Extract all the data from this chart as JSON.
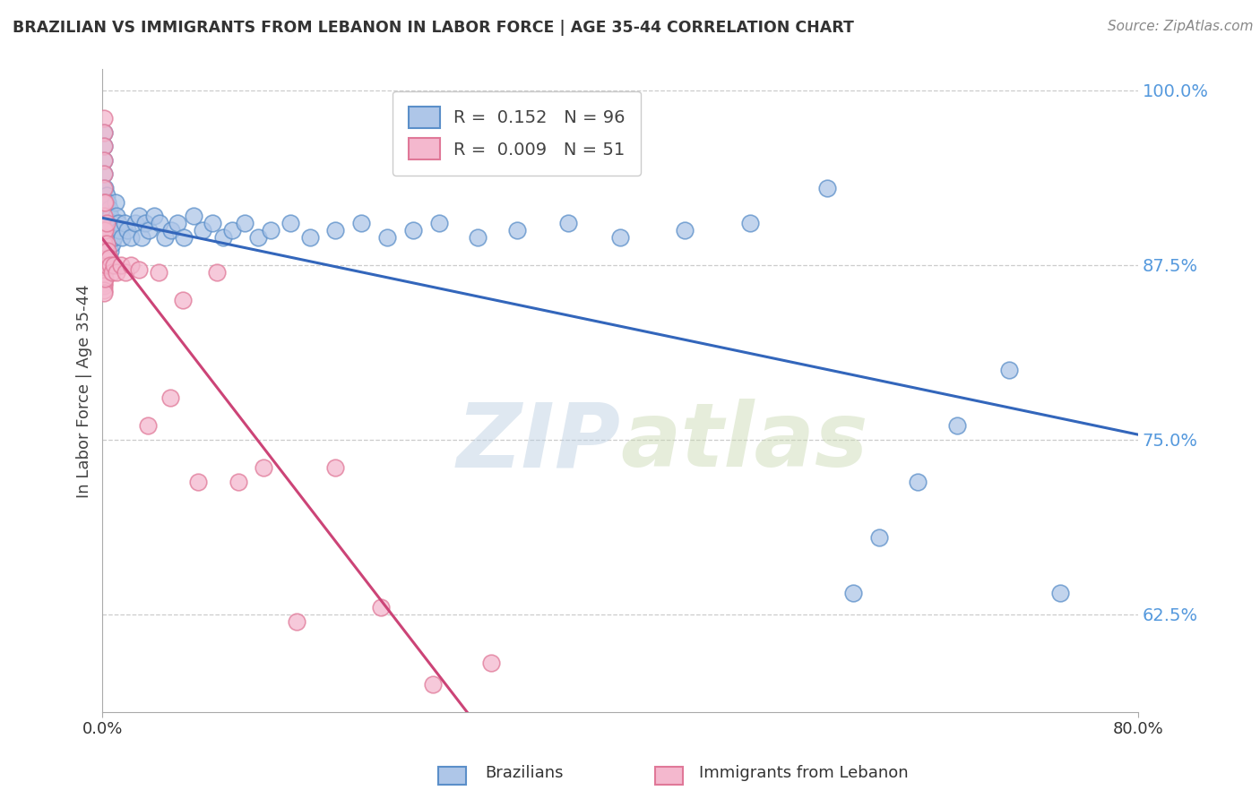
{
  "title": "BRAZILIAN VS IMMIGRANTS FROM LEBANON IN LABOR FORCE | AGE 35-44 CORRELATION CHART",
  "source": "Source: ZipAtlas.com",
  "ylabel": "In Labor Force | Age 35-44",
  "watermark_zip": "ZIP",
  "watermark_atlas": "atlas",
  "legend_blue_R": "0.152",
  "legend_blue_N": "96",
  "legend_pink_R": "0.009",
  "legend_pink_N": "51",
  "legend_label_blue": "Brazilians",
  "legend_label_pink": "Immigrants from Lebanon",
  "xlim": [
    0.0,
    0.8
  ],
  "ylim": [
    0.555,
    1.015
  ],
  "yticks": [
    0.625,
    0.75,
    0.875,
    1.0
  ],
  "ytick_labels": [
    "62.5%",
    "75.0%",
    "87.5%",
    "100.0%"
  ],
  "blue_scatter_color": "#aec6e8",
  "blue_edge_color": "#5b8fc9",
  "pink_scatter_color": "#f4b8ce",
  "pink_edge_color": "#e07898",
  "blue_line_color": "#3366bb",
  "pink_line_color": "#cc4477",
  "background_color": "#ffffff",
  "grid_color": "#cccccc",
  "title_color": "#333333",
  "axis_tick_color": "#5599dd",
  "blue_x": [
    0.001,
    0.001,
    0.001,
    0.001,
    0.001,
    0.001,
    0.001,
    0.001,
    0.001,
    0.001,
    0.001,
    0.001,
    0.001,
    0.001,
    0.001,
    0.001,
    0.001,
    0.001,
    0.001,
    0.001,
    0.002,
    0.002,
    0.002,
    0.002,
    0.002,
    0.002,
    0.002,
    0.002,
    0.003,
    0.003,
    0.003,
    0.003,
    0.003,
    0.003,
    0.004,
    0.004,
    0.004,
    0.004,
    0.005,
    0.005,
    0.005,
    0.005,
    0.006,
    0.006,
    0.006,
    0.007,
    0.007,
    0.008,
    0.009,
    0.01,
    0.011,
    0.012,
    0.013,
    0.015,
    0.017,
    0.019,
    0.022,
    0.025,
    0.028,
    0.03,
    0.033,
    0.036,
    0.04,
    0.044,
    0.048,
    0.053,
    0.058,
    0.063,
    0.07,
    0.077,
    0.085,
    0.093,
    0.1,
    0.11,
    0.12,
    0.13,
    0.145,
    0.16,
    0.18,
    0.2,
    0.22,
    0.24,
    0.26,
    0.29,
    0.32,
    0.36,
    0.4,
    0.45,
    0.5,
    0.56,
    0.58,
    0.6,
    0.63,
    0.66,
    0.7,
    0.74
  ],
  "blue_y": [
    0.97,
    0.96,
    0.95,
    0.94,
    0.93,
    0.92,
    0.91,
    0.9,
    0.895,
    0.89,
    0.887,
    0.885,
    0.882,
    0.88,
    0.878,
    0.876,
    0.873,
    0.87,
    0.868,
    0.865,
    0.93,
    0.92,
    0.91,
    0.9,
    0.89,
    0.885,
    0.88,
    0.875,
    0.925,
    0.915,
    0.905,
    0.895,
    0.885,
    0.875,
    0.92,
    0.91,
    0.9,
    0.885,
    0.915,
    0.905,
    0.895,
    0.88,
    0.91,
    0.9,
    0.885,
    0.905,
    0.89,
    0.9,
    0.895,
    0.92,
    0.91,
    0.905,
    0.9,
    0.895,
    0.905,
    0.9,
    0.895,
    0.905,
    0.91,
    0.895,
    0.905,
    0.9,
    0.91,
    0.905,
    0.895,
    0.9,
    0.905,
    0.895,
    0.91,
    0.9,
    0.905,
    0.895,
    0.9,
    0.905,
    0.895,
    0.9,
    0.905,
    0.895,
    0.9,
    0.905,
    0.895,
    0.9,
    0.905,
    0.895,
    0.9,
    0.905,
    0.895,
    0.9,
    0.905,
    0.93,
    0.64,
    0.68,
    0.72,
    0.76,
    0.8,
    0.64
  ],
  "pink_x": [
    0.001,
    0.001,
    0.001,
    0.001,
    0.001,
    0.001,
    0.001,
    0.001,
    0.001,
    0.001,
    0.001,
    0.001,
    0.001,
    0.001,
    0.001,
    0.001,
    0.001,
    0.001,
    0.001,
    0.001,
    0.002,
    0.002,
    0.002,
    0.002,
    0.002,
    0.003,
    0.003,
    0.003,
    0.004,
    0.005,
    0.006,
    0.007,
    0.009,
    0.011,
    0.014,
    0.018,
    0.022,
    0.028,
    0.035,
    0.043,
    0.052,
    0.062,
    0.074,
    0.088,
    0.105,
    0.124,
    0.15,
    0.18,
    0.215,
    0.255,
    0.3
  ],
  "pink_y": [
    0.98,
    0.97,
    0.96,
    0.95,
    0.94,
    0.93,
    0.92,
    0.91,
    0.9,
    0.895,
    0.89,
    0.885,
    0.88,
    0.875,
    0.87,
    0.865,
    0.862,
    0.86,
    0.857,
    0.855,
    0.92,
    0.9,
    0.885,
    0.875,
    0.865,
    0.905,
    0.89,
    0.875,
    0.885,
    0.88,
    0.875,
    0.87,
    0.875,
    0.87,
    0.875,
    0.87,
    0.875,
    0.872,
    0.76,
    0.87,
    0.78,
    0.85,
    0.72,
    0.87,
    0.72,
    0.73,
    0.62,
    0.73,
    0.63,
    0.575,
    0.59
  ]
}
